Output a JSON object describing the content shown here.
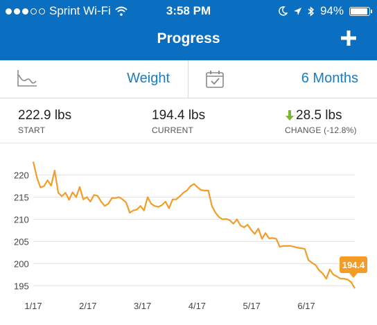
{
  "status_bar": {
    "carrier": "Sprint Wi-Fi",
    "time": "3:58 PM",
    "battery": "94%",
    "battery_level": 0.94,
    "icons": [
      "signal-dots-icon",
      "wifi-icon",
      "moon-icon",
      "location-arrow-icon",
      "bluetooth-icon",
      "battery-icon"
    ]
  },
  "header": {
    "title": "Progress",
    "add_icon": "plus-icon"
  },
  "selector": {
    "metric_label": "Weight",
    "metric_icon": "line-chart-icon",
    "range_label": "6 Months",
    "range_icon": "calendar-check-icon"
  },
  "stats": {
    "start": {
      "value": "222.9 lbs",
      "label": "START"
    },
    "current": {
      "value": "194.4 lbs",
      "label": "CURRENT"
    },
    "change": {
      "value": "28.5 lbs",
      "label": "CHANGE (-12.8%)",
      "icon": "down-arrow-icon"
    }
  },
  "colors": {
    "header_bg": "#0a6fc1",
    "accent_blue": "#1a7cc2",
    "line": "#f39c26",
    "arrow_green": "#7cb82f"
  },
  "chart_data": {
    "type": "line",
    "yticks": [
      220,
      215,
      210,
      205,
      200,
      195
    ],
    "xticks": [
      "1/17",
      "2/17",
      "3/17",
      "4/17",
      "5/17",
      "6/17"
    ],
    "ylim": [
      193.5,
      224
    ],
    "xlim": [
      0,
      180
    ],
    "grid": true,
    "callout": "194.4",
    "series": [
      {
        "x": [
          0,
          2,
          4,
          6,
          8,
          10,
          12,
          14,
          16,
          18,
          20,
          22,
          24,
          26,
          28,
          30,
          32,
          34,
          36,
          38,
          40,
          42,
          44,
          46,
          48,
          50,
          52,
          54,
          56,
          58,
          60,
          62,
          64,
          66,
          68,
          70,
          72,
          74,
          76,
          78,
          80,
          82,
          84,
          86,
          88,
          90,
          92,
          94,
          96,
          98,
          100,
          102,
          104,
          106,
          108,
          110,
          112,
          114,
          116,
          118,
          120,
          122,
          124,
          126,
          128,
          130,
          132,
          134,
          136,
          138,
          140,
          142,
          144,
          146,
          148,
          150,
          152,
          154,
          156,
          158,
          160,
          162,
          164,
          166,
          168,
          170,
          172,
          174,
          176,
          178,
          180
        ],
        "y": [
          223,
          219.5,
          217.2,
          217.5,
          218.8,
          217.6,
          221,
          216,
          215.2,
          216,
          214.4,
          216.1,
          215,
          217.3,
          214.5,
          215,
          214,
          215.5,
          215.3,
          214,
          213,
          213.5,
          214.8,
          214.8,
          215,
          214.5,
          213.8,
          211.5,
          212,
          212.2,
          213,
          212,
          215,
          213.5,
          213,
          212.8,
          213.2,
          214,
          212.5,
          214.5,
          214.5,
          215.2,
          216,
          216.5,
          217.5,
          218,
          217.2,
          216.6,
          216.5,
          216.5,
          213,
          211.5,
          210.5,
          210,
          210.1,
          209.8,
          209,
          210,
          208.6,
          208.2,
          208.8,
          207.6,
          206.7,
          207.9,
          205.6,
          206.9,
          205.7,
          205.8,
          205.6,
          203.8,
          204,
          204,
          204,
          203.8,
          203.6,
          203.5,
          203.3,
          200.8,
          200.2,
          199.7,
          198.5,
          197.8,
          196.6,
          198.7,
          197.5,
          197.1,
          196.6,
          196.6,
          196.4,
          195.8,
          194.4
        ]
      }
    ]
  }
}
